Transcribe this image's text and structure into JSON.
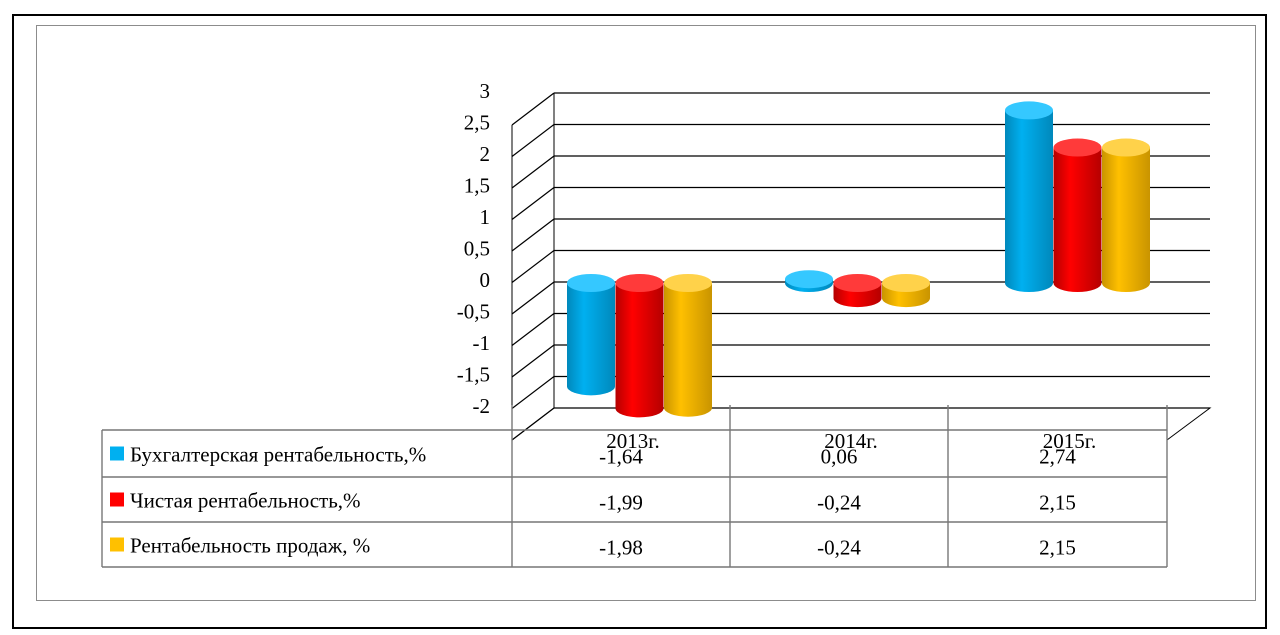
{
  "chart_data": {
    "type": "bar",
    "three_d": true,
    "categories": [
      "2013г.",
      "2014г.",
      "2015г."
    ],
    "series": [
      {
        "name": "Бухгалтерская рентабельность,%",
        "values": [
          -1.64,
          0.06,
          2.74
        ],
        "color": "#00b0f0",
        "shade": "#0088bb",
        "top": "#35c8ff"
      },
      {
        "name": "Чистая рентабельность,%",
        "values": [
          -1.99,
          -0.24,
          2.15
        ],
        "color": "#ff0000",
        "shade": "#b50000",
        "top": "#ff3a3a"
      },
      {
        "name": "Рентабельность продаж, %",
        "values": [
          -1.98,
          -0.24,
          2.15
        ],
        "color": "#ffc000",
        "shade": "#c99400",
        "top": "#ffd24a"
      }
    ],
    "y_ticks": [
      "3",
      "2,5",
      "2",
      "1,5",
      "1",
      "0,5",
      "0",
      "-0,5",
      "-1",
      "-1,5",
      "-2"
    ],
    "ylim": [
      -2,
      3
    ],
    "grid": true,
    "legend": "data-table",
    "table": {
      "rows": [
        [
          "-1,64",
          "0,06",
          "2,74"
        ],
        [
          "-1,99",
          "-0,24",
          "2,15"
        ],
        [
          "-1,98",
          "-0,24",
          "2,15"
        ]
      ]
    },
    "title": "",
    "xlabel": "",
    "ylabel": ""
  }
}
